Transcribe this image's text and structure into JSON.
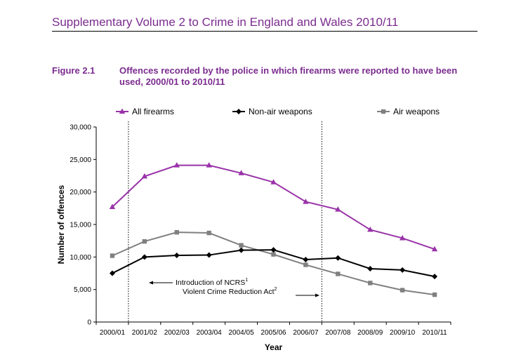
{
  "document": {
    "header": "Supplementary Volume 2 to Crime in England and Wales 2010/11",
    "figure_label": "Figure 2.1",
    "figure_title": "Offences recorded by the police in which firearms were reported to have been used, 2000/01 to 2010/11"
  },
  "chart_data": {
    "type": "line",
    "xlabel": "Year",
    "ylabel": "Number of offences",
    "categories": [
      "2000/01",
      "2001/02",
      "2002/03",
      "2003/04",
      "2004/05",
      "2005/06",
      "2006/07",
      "2007/08",
      "2008/09",
      "2009/10",
      "2010/11"
    ],
    "ylim": [
      0,
      30000
    ],
    "yticks": [
      0,
      5000,
      10000,
      15000,
      20000,
      25000,
      30000
    ],
    "ytick_labels": [
      "0",
      "5,000",
      "10,000",
      "15,000",
      "20,000",
      "25,000",
      "30,000"
    ],
    "grid": false,
    "legend_position": "top",
    "series": [
      {
        "name": "All firearms",
        "color": "#9933A8",
        "marker": "triangle",
        "values": [
          17700,
          22400,
          24100,
          24100,
          22900,
          21500,
          18500,
          17300,
          14200,
          12900,
          11200
        ]
      },
      {
        "name": "Non-air weapons",
        "color": "#000000",
        "marker": "diamond",
        "values": [
          7500,
          10000,
          10250,
          10300,
          11050,
          11100,
          9600,
          9850,
          8200,
          8000,
          7000
        ]
      },
      {
        "name": "Air weapons",
        "color": "#808080",
        "marker": "square",
        "values": [
          10200,
          12400,
          13800,
          13700,
          11800,
          10400,
          8800,
          7400,
          6000,
          4900,
          4200
        ]
      }
    ],
    "annotations": [
      {
        "text": "Introduction of NCRS",
        "superscript": "1",
        "at_category": "2001/02"
      },
      {
        "text": "Violent Crime Reduction Act",
        "superscript": "2",
        "at_category": "2006/07"
      }
    ]
  }
}
